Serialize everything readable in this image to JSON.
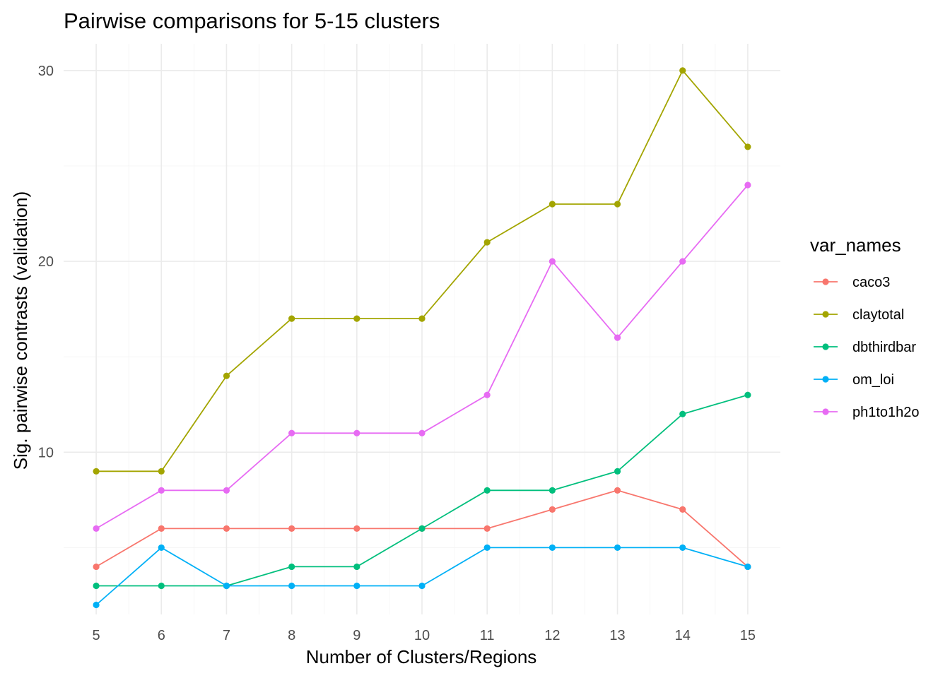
{
  "chart_data": {
    "type": "line",
    "title": "Pairwise comparisons for 5-15 clusters",
    "xlabel": "Number of Clusters/Regions",
    "ylabel": "Sig. pairwise contrasts (validation)",
    "x": [
      5,
      6,
      7,
      8,
      9,
      10,
      11,
      12,
      13,
      14,
      15
    ],
    "xlim": [
      4.5,
      15.5
    ],
    "ylim": [
      1.5,
      31.4
    ],
    "y_ticks": [
      10,
      20,
      30
    ],
    "grid": true,
    "legend_title": "var_names",
    "legend_position": "right",
    "series": [
      {
        "name": "caco3",
        "color": "#F8766D",
        "values": [
          4,
          6,
          6,
          6,
          6,
          6,
          6,
          7,
          8,
          7,
          4
        ]
      },
      {
        "name": "claytotal",
        "color": "#A3A500",
        "values": [
          9,
          9,
          14,
          17,
          17,
          17,
          21,
          23,
          23,
          30,
          26
        ]
      },
      {
        "name": "dbthirdbar",
        "color": "#00BF7D",
        "values": [
          3,
          3,
          3,
          4,
          4,
          6,
          8,
          8,
          9,
          12,
          13
        ]
      },
      {
        "name": "om_loi",
        "color": "#00B0F6",
        "values": [
          2,
          5,
          3,
          3,
          3,
          3,
          5,
          5,
          5,
          5,
          4
        ]
      },
      {
        "name": "ph1to1h2o",
        "color": "#E76BF3",
        "values": [
          6,
          8,
          8,
          11,
          11,
          11,
          13,
          20,
          16,
          20,
          24
        ]
      }
    ]
  }
}
